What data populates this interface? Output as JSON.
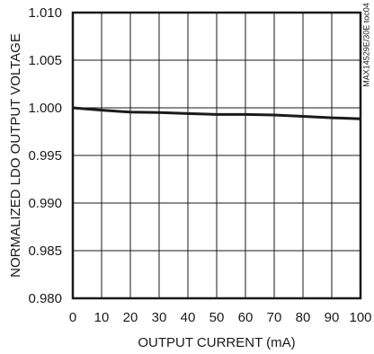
{
  "chart_data": {
    "type": "line",
    "title": "",
    "xlabel": "OUTPUT CURRENT (mA)",
    "ylabel": "NORMALIZED LDO OUTPUT VOLTAGE",
    "side_label": "MAX14529E/30E toc04",
    "xlim": [
      0,
      100
    ],
    "ylim": [
      0.98,
      1.01
    ],
    "x_ticks": [
      0,
      10,
      20,
      30,
      40,
      50,
      60,
      70,
      80,
      90,
      100
    ],
    "x_tick_labels": [
      "0",
      "10",
      "20",
      "30",
      "40",
      "50",
      "60",
      "70",
      "80",
      "90",
      "100"
    ],
    "y_ticks": [
      0.98,
      0.985,
      0.99,
      0.995,
      1.0,
      1.005,
      1.01
    ],
    "y_tick_labels": [
      "0.980",
      "0.985",
      "0.990",
      "0.995",
      "1.000",
      "1.005",
      "1.010"
    ],
    "grid": true,
    "series": [
      {
        "x": [
          0,
          10,
          20,
          30,
          40,
          50,
          60,
          70,
          80,
          90,
          100
        ],
        "values": [
          1.0,
          0.99975,
          0.99955,
          0.9995,
          0.9994,
          0.9993,
          0.9993,
          0.99925,
          0.9991,
          0.99895,
          0.99885
        ],
        "color": "#1a1a1a"
      }
    ]
  }
}
